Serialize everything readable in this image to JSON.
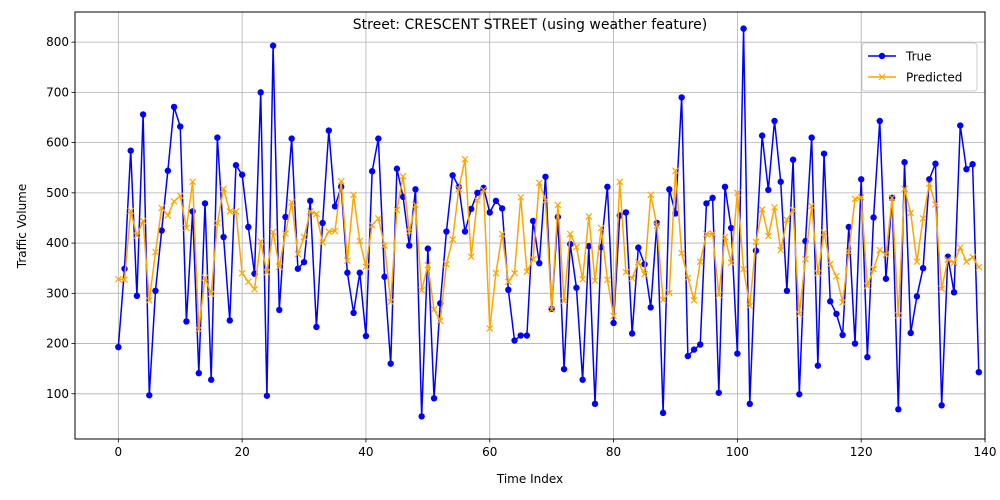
{
  "chart_data": {
    "type": "line",
    "title": "Street: CRESCENT STREET (using weather feature)",
    "xlabel": "Time Index",
    "ylabel": "Traffic Volume",
    "xlim": [
      -7,
      140
    ],
    "ylim": [
      10,
      860
    ],
    "xticks": [
      0,
      20,
      40,
      60,
      80,
      100,
      120,
      140
    ],
    "yticks": [
      100,
      200,
      300,
      400,
      500,
      600,
      700,
      800
    ],
    "grid": true,
    "legend_position": "top-right",
    "series": [
      {
        "name": "True",
        "color": "#0000ff",
        "marker": "o",
        "values": [
          193,
          349,
          584,
          295,
          656,
          97,
          305,
          425,
          544,
          671,
          632,
          244,
          463,
          141,
          479,
          128,
          610,
          412,
          246,
          555,
          536,
          432,
          339,
          700,
          96,
          793,
          267,
          452,
          608,
          349,
          362,
          484,
          233,
          440,
          624,
          473,
          512,
          341,
          261,
          341,
          215,
          543,
          608,
          333,
          160,
          548,
          492,
          395,
          507,
          55,
          389,
          91,
          280,
          423,
          535,
          512,
          423,
          468,
          500,
          510,
          461,
          484,
          469,
          307,
          206,
          216,
          216,
          444,
          360,
          532,
          269,
          452,
          149,
          398,
          311,
          128,
          394,
          80,
          392,
          512,
          241,
          455,
          461,
          220,
          391,
          358,
          272,
          440,
          62,
          507,
          459,
          690,
          175,
          188,
          198,
          479,
          490,
          102,
          512,
          430,
          180,
          827,
          80,
          385,
          614,
          506,
          643,
          522,
          305,
          566,
          99,
          404,
          610,
          156,
          578,
          284,
          259,
          217,
          432,
          200,
          527,
          173,
          451,
          643,
          329,
          490,
          69,
          561,
          221,
          294,
          350,
          527,
          558,
          77,
          373,
          302,
          634,
          547,
          557,
          143
        ]
      },
      {
        "name": "Predicted",
        "color": "#ffa500",
        "marker": "x",
        "values": [
          328,
          327,
          464,
          415,
          444,
          286,
          382,
          470,
          455,
          483,
          494,
          430,
          522,
          228,
          331,
          299,
          440,
          508,
          463,
          463,
          340,
          323,
          308,
          403,
          342,
          422,
          353,
          419,
          481,
          378,
          412,
          463,
          458,
          401,
          423,
          424,
          523,
          365,
          496,
          404,
          353,
          436,
          449,
          395,
          283,
          466,
          533,
          423,
          476,
          306,
          356,
          268,
          245,
          358,
          407,
          508,
          567,
          373,
          485,
          506,
          230,
          340,
          418,
          323,
          340,
          491,
          343,
          368,
          520,
          485,
          268,
          476,
          285,
          418,
          392,
          328,
          453,
          325,
          430,
          327,
          255,
          522,
          342,
          330,
          362,
          338,
          496,
          435,
          287,
          301,
          544,
          380,
          331,
          286,
          363,
          418,
          419,
          297,
          412,
          361,
          500,
          348,
          275,
          402,
          467,
          414,
          471,
          386,
          446,
          466,
          259,
          368,
          474,
          340,
          421,
          358,
          334,
          282,
          383,
          488,
          491,
          315,
          348,
          386,
          377,
          490,
          256,
          508,
          460,
          363,
          449,
          518,
          477,
          309,
          367,
          361,
          391,
          363,
          372,
          352
        ]
      }
    ]
  }
}
